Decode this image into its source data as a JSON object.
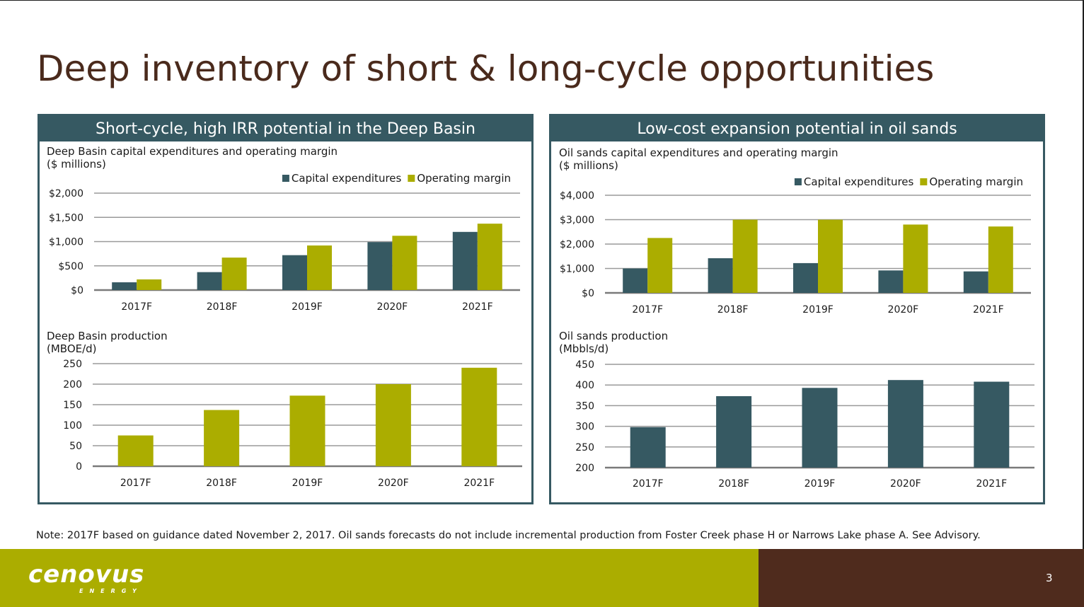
{
  "slide": {
    "title": "Deep inventory of short & long-cycle opportunities",
    "note": "Note: 2017F based on guidance dated November 2, 2017. Oil sands forecasts do not include incremental production from Foster Creek phase H or Narrows Lake phase A. See Advisory.",
    "page_number": "3",
    "logo_text": "cenovus",
    "logo_subtext": "ENERGY"
  },
  "colors": {
    "dark_teal": "#365962",
    "olive": "#abad00",
    "title_brown": "#4a2a1c",
    "footer_brown": "#4f2b1d",
    "grid": "#9a9a9a"
  },
  "panels": [
    {
      "header": "Short-cycle, high IRR potential in the Deep Basin"
    },
    {
      "header": "Low-cost expansion potential in oil sands"
    }
  ],
  "chart_data": [
    {
      "type": "bar",
      "title_lines": [
        "Deep Basin capital expenditures and operating margin",
        "($ millions)"
      ],
      "categories": [
        "2017F",
        "2018F",
        "2019F",
        "2020F",
        "2021F"
      ],
      "series": [
        {
          "name": "Capital expenditures",
          "color": "#365962",
          "values": [
            160,
            370,
            720,
            990,
            1200
          ]
        },
        {
          "name": "Operating margin",
          "color": "#abad00",
          "values": [
            220,
            670,
            920,
            1120,
            1370
          ]
        }
      ],
      "ylim": [
        0,
        2000
      ],
      "yticks": [
        0,
        500,
        1000,
        1500,
        2000
      ],
      "ytick_labels": [
        "$0",
        "$500",
        "$1,000",
        "$1,500",
        "$2,000"
      ],
      "legend": "top-right",
      "grid": true
    },
    {
      "type": "bar",
      "title_lines": [
        "Deep Basin production",
        "(MBOE/d)"
      ],
      "categories": [
        "2017F",
        "2018F",
        "2019F",
        "2020F",
        "2021F"
      ],
      "series": [
        {
          "color": "#abad00",
          "values": [
            75,
            137,
            172,
            200,
            240
          ]
        }
      ],
      "ylim": [
        0,
        250
      ],
      "yticks": [
        0,
        50,
        100,
        150,
        200,
        250
      ],
      "ytick_labels": [
        "0",
        "50",
        "100",
        "150",
        "200",
        "250"
      ],
      "grid": true
    },
    {
      "type": "bar",
      "title_lines": [
        "Oil sands capital expenditures and operating margin",
        "($ millions)"
      ],
      "categories": [
        "2017F",
        "2018F",
        "2019F",
        "2020F",
        "2021F"
      ],
      "series": [
        {
          "name": "Capital expenditures",
          "color": "#365962",
          "values": [
            1000,
            1420,
            1220,
            920,
            880
          ]
        },
        {
          "name": "Operating margin",
          "color": "#abad00",
          "values": [
            2250,
            3000,
            3000,
            2800,
            2720
          ]
        }
      ],
      "ylim": [
        0,
        4000
      ],
      "yticks": [
        0,
        1000,
        2000,
        3000,
        4000
      ],
      "ytick_labels": [
        "$0",
        "$1,000",
        "$2,000",
        "$3,000",
        "$4,000"
      ],
      "legend": "top-right",
      "grid": true
    },
    {
      "type": "bar",
      "title_lines": [
        "Oil sands production",
        "(Mbbls/d)"
      ],
      "categories": [
        "2017F",
        "2018F",
        "2019F",
        "2020F",
        "2021F"
      ],
      "series": [
        {
          "color": "#365962",
          "values": [
            298,
            373,
            393,
            412,
            408
          ]
        }
      ],
      "ylim": [
        200,
        450
      ],
      "yticks": [
        200,
        250,
        300,
        350,
        400,
        450
      ],
      "ytick_labels": [
        "200",
        "250",
        "300",
        "350",
        "400",
        "450"
      ],
      "grid": true
    }
  ]
}
